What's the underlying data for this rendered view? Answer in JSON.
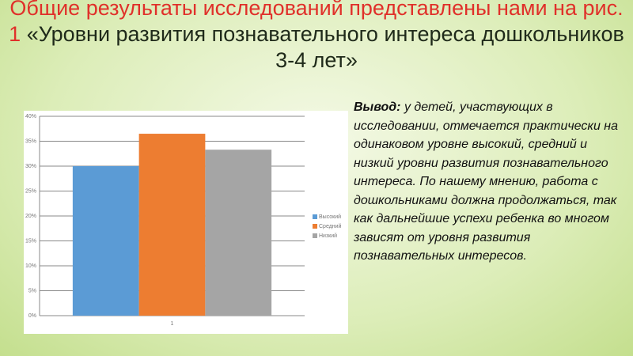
{
  "title_highlight": "Общие результаты исследований представлены нами на рис. 1",
  "title_rest": "«Уровни развития познавательного интереса дошкольников 3-4 лет»",
  "conclusion_label": "Вывод:",
  "conclusion_text": "у детей, участвующих в исследовании, отмечается практически на одинаковом уровне высокий, средний и низкий уровни развития познавательного интереса. По нашему мнению, работа с дошкольниками должна продолжаться, так как дальнейшие успехи ребенка во многом зависят от уровня развития познавательных интересов.",
  "chart_data": {
    "type": "bar",
    "categories": [
      "1"
    ],
    "series": [
      {
        "name": "Высокий",
        "color": "#5b9bd5",
        "values": [
          30
        ]
      },
      {
        "name": "Средний",
        "color": "#ed7d31",
        "values": [
          36.5
        ]
      },
      {
        "name": "Низкий",
        "color": "#a5a5a5",
        "values": [
          33.3
        ]
      }
    ],
    "ylim": [
      0,
      40
    ],
    "yticks": [
      {
        "value": 0,
        "label": "0%"
      },
      {
        "value": 5,
        "label": "5%"
      },
      {
        "value": 10,
        "label": "10%"
      },
      {
        "value": 15,
        "label": "15%"
      },
      {
        "value": 20,
        "label": "20%"
      },
      {
        "value": 25,
        "label": "25%"
      },
      {
        "value": 30,
        "label": "30%"
      },
      {
        "value": 35,
        "label": "35%"
      },
      {
        "value": 40,
        "label": "40%"
      }
    ],
    "grid": true,
    "legend": "right"
  }
}
